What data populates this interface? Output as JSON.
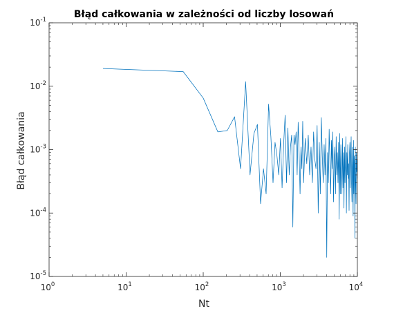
{
  "chart_data": {
    "type": "line",
    "title": "Błąd całkowania w zależności od liczby losowań",
    "xlabel": "Nt",
    "ylabel": "Błąd całkowania",
    "xscale": "log",
    "yscale": "log",
    "xlim": [
      1,
      10000
    ],
    "ylim": [
      1e-05,
      0.1
    ],
    "grid": false,
    "box": true,
    "line_color": "#0072bd",
    "x_ticks": [
      {
        "base": "10",
        "exp": "0"
      },
      {
        "base": "10",
        "exp": "1"
      },
      {
        "base": "10",
        "exp": "2"
      },
      {
        "base": "10",
        "exp": "3"
      },
      {
        "base": "10",
        "exp": "4"
      }
    ],
    "y_ticks": [
      {
        "base": "10",
        "exp": "-5"
      },
      {
        "base": "10",
        "exp": "-4"
      },
      {
        "base": "10",
        "exp": "-3"
      },
      {
        "base": "10",
        "exp": "-2"
      },
      {
        "base": "10",
        "exp": "-1"
      }
    ],
    "series": [
      {
        "x_range": [
          5,
          10000
        ],
        "x": [
          5,
          55,
          100,
          155,
          205,
          255,
          305,
          355,
          405,
          455,
          505,
          555,
          605,
          655,
          705,
          755,
          805,
          855,
          905,
          955,
          1005,
          1055,
          1105,
          1155,
          1205,
          1255,
          1305,
          1355,
          1405,
          1455,
          1505,
          1555,
          1605,
          1655,
          1705,
          1755,
          1805,
          1855,
          1905,
          1955,
          2005,
          2105,
          2205,
          2305,
          2405,
          2505,
          2605,
          2705,
          2805,
          2905,
          3005,
          3105,
          3205,
          3305,
          3405,
          3505,
          3605,
          3705,
          3805,
          3905,
          4005,
          4105,
          4205,
          4305,
          4405,
          4505,
          4605,
          4705,
          4805,
          4905,
          5005,
          5105,
          5205,
          5305,
          5405,
          5505,
          5605,
          5705,
          5805,
          5905,
          6005,
          6105,
          6205,
          6305,
          6405,
          6505,
          6605,
          6705,
          6805,
          6905,
          7005,
          7105,
          7205,
          7305,
          7405,
          7505,
          7605,
          7705,
          7805,
          7905,
          8005,
          8105,
          8205,
          8305,
          8405,
          8505,
          8605,
          8705,
          8805,
          8905,
          9005,
          9105,
          9205,
          9305,
          9405,
          9505,
          9605,
          9705,
          9805,
          9905,
          10000
        ],
        "values": [
          0.019,
          0.017,
          0.0065,
          0.0019,
          0.002,
          0.0033,
          0.0005,
          0.0118,
          0.0004,
          0.0018,
          0.0025,
          0.00014,
          0.0005,
          0.0002,
          0.0052,
          0.0016,
          0.0003,
          0.0013,
          0.0008,
          0.0004,
          0.0015,
          0.00025,
          0.0012,
          0.0035,
          0.0003,
          0.0022,
          0.0004,
          0.0011,
          0.0017,
          6e-05,
          0.0017,
          0.0012,
          0.0019,
          0.0004,
          0.0027,
          0.0009,
          0.0002,
          0.0011,
          0.0005,
          0.0028,
          0.0003,
          0.0015,
          0.0006,
          0.0017,
          0.0004,
          0.0011,
          0.0003,
          0.0019,
          0.0007,
          0.0005,
          0.0024,
          0.0001,
          0.0013,
          0.0002,
          0.0032,
          0.0008,
          0.0003,
          0.0012,
          0.0004,
          0.0015,
          2e-05,
          0.0009,
          0.0003,
          0.0021,
          0.0006,
          0.0002,
          0.0014,
          0.0005,
          0.0019,
          0.00015,
          0.0007,
          0.0011,
          0.0002,
          0.0016,
          0.0004,
          0.0009,
          0.0003,
          0.0013,
          8e-05,
          0.0018,
          0.0002,
          0.0012,
          0.0005,
          0.0002,
          0.0015,
          0.00025,
          0.0009,
          0.00012,
          0.0011,
          0.0003,
          0.0007,
          0.0016,
          0.0001,
          0.0009,
          0.0004,
          0.0012,
          0.00035,
          0.0006,
          0.00011,
          0.0009,
          0.0013,
          0.00025,
          0.0007,
          0.0016,
          0.0003,
          0.00015,
          0.0011,
          0.0005,
          9e-05,
          0.0014,
          0.0002,
          0.0008,
          0.0006,
          4e-05,
          0.0011,
          0.0003,
          0.00014,
          0.0009,
          0.00045,
          0.0007,
          0.00035
        ]
      }
    ]
  }
}
